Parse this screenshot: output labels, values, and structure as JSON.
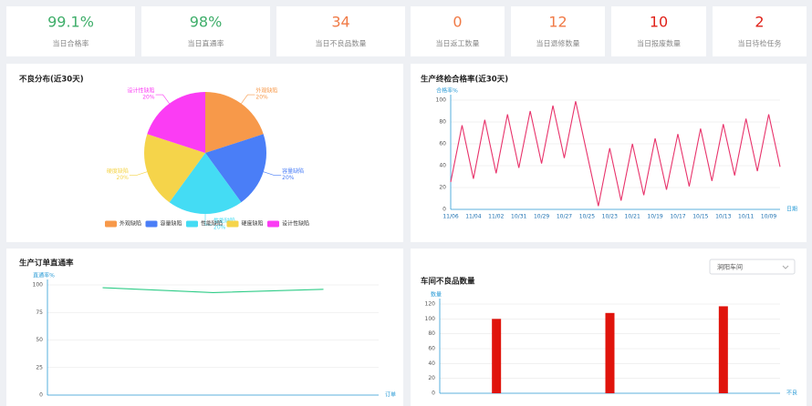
{
  "kpis": [
    {
      "value": "99.1%",
      "label": "当日合格率",
      "color": "#3fae6a"
    },
    {
      "value": "98%",
      "label": "当日直通率",
      "color": "#3fae6a"
    },
    {
      "value": "34",
      "label": "当日不良品数量",
      "color": "#f07a46"
    },
    {
      "value": "0",
      "label": "当日返工数量",
      "color": "#f07a46"
    },
    {
      "value": "12",
      "label": "当日退修数量",
      "color": "#f07a46"
    },
    {
      "value": "10",
      "label": "当日报废数量",
      "color": "#e0221a"
    },
    {
      "value": "2",
      "label": "当日待检任务",
      "color": "#e0221a"
    }
  ],
  "chart_data": [
    {
      "type": "pie",
      "title": "不良分布(近30天)",
      "categories": [
        "外观缺陷",
        "容量缺陷",
        "性能缺陷",
        "硬度缺陷",
        "设计性缺陷"
      ],
      "values": [
        20,
        20,
        20,
        20,
        20
      ],
      "value_labels": [
        "20%",
        "20%",
        "20%",
        "20%",
        "20%"
      ],
      "colors": [
        "#f7994a",
        "#4a7ef7",
        "#44dcf4",
        "#f5d44a",
        "#fb3cf4"
      ]
    },
    {
      "type": "line",
      "title": "生产终检合格率(近30天)",
      "y_label": "合格率%",
      "x_label": "日期",
      "categories": [
        "11/06",
        null,
        "11/04",
        null,
        "11/02",
        null,
        "10/31",
        null,
        "10/29",
        null,
        "10/27",
        null,
        "10/25",
        null,
        "10/23",
        null,
        "10/21",
        null,
        "10/19",
        null,
        "10/17",
        null,
        "10/15",
        null,
        "10/13",
        null,
        "10/11",
        null,
        "10/09",
        null
      ],
      "values": [
        25,
        77,
        28,
        82,
        33,
        87,
        38,
        90,
        42,
        95,
        47,
        99,
        51,
        3,
        56,
        8,
        60,
        13,
        65,
        18,
        69,
        21,
        74,
        26,
        78,
        31,
        83,
        35,
        87,
        39
      ],
      "color": "#e8336b",
      "ylim": [
        0,
        100
      ],
      "yticks": [
        0,
        20,
        40,
        60,
        80,
        100
      ],
      "grid": true
    },
    {
      "type": "line",
      "title": "生产订单直通率",
      "y_label": "直通率%",
      "x_label": "订单",
      "categories": [
        null,
        null,
        null
      ],
      "values": [
        97.5,
        93,
        96
      ],
      "color": "#2ecc87",
      "ylim": [
        0,
        100
      ],
      "yticks": [
        0,
        25,
        50,
        75,
        100
      ],
      "grid": true
    },
    {
      "type": "bar",
      "title": "车间不良品数量",
      "y_label": "数量",
      "x_label": "不良",
      "select": "涧阳车间",
      "categories": [
        null,
        null,
        null
      ],
      "values": [
        100,
        108,
        117
      ],
      "color": "#e0140c",
      "ylim": [
        0,
        120
      ],
      "yticks": [
        0,
        20,
        40,
        60,
        80,
        100,
        120
      ],
      "grid": true
    }
  ]
}
